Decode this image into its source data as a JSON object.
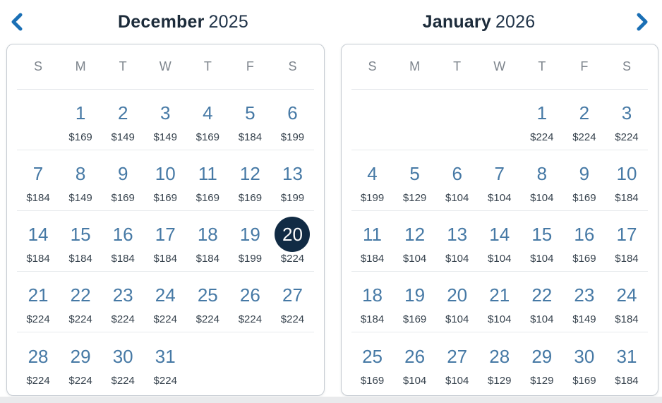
{
  "colors": {
    "chevron_blue": "#1a6fb5",
    "date_blue": "#4679a5",
    "selected_circle_navy": "#112b44",
    "selected_text": "#ffffff",
    "title_navy": "#1c2b3a",
    "price_text": "#36424d",
    "day_header_gray": "#7d848c",
    "panel_border": "#c6ccd2",
    "separator": "#e7eaed",
    "bottom_strip": "#e9eaec"
  },
  "nav": {
    "prev_icon": "chevron-left",
    "next_icon": "chevron-right"
  },
  "selected_date": {
    "month": "December",
    "year": "2025",
    "day": "20",
    "price": "$224"
  },
  "calendars": [
    {
      "month": "December",
      "year": "2025",
      "day_headers": [
        "S",
        "M",
        "T",
        "W",
        "T",
        "F",
        "S"
      ],
      "weeks": [
        [
          {
            "day": "",
            "price": ""
          },
          {
            "day": "1",
            "price": "$169"
          },
          {
            "day": "2",
            "price": "$149"
          },
          {
            "day": "3",
            "price": "$149"
          },
          {
            "day": "4",
            "price": "$169"
          },
          {
            "day": "5",
            "price": "$184"
          },
          {
            "day": "6",
            "price": "$199"
          }
        ],
        [
          {
            "day": "7",
            "price": "$184"
          },
          {
            "day": "8",
            "price": "$149"
          },
          {
            "day": "9",
            "price": "$169"
          },
          {
            "day": "10",
            "price": "$169"
          },
          {
            "day": "11",
            "price": "$169"
          },
          {
            "day": "12",
            "price": "$169"
          },
          {
            "day": "13",
            "price": "$199"
          }
        ],
        [
          {
            "day": "14",
            "price": "$184"
          },
          {
            "day": "15",
            "price": "$184"
          },
          {
            "day": "16",
            "price": "$184"
          },
          {
            "day": "17",
            "price": "$184"
          },
          {
            "day": "18",
            "price": "$184"
          },
          {
            "day": "19",
            "price": "$199"
          },
          {
            "day": "20",
            "price": "$224",
            "selected": true
          }
        ],
        [
          {
            "day": "21",
            "price": "$224"
          },
          {
            "day": "22",
            "price": "$224"
          },
          {
            "day": "23",
            "price": "$224"
          },
          {
            "day": "24",
            "price": "$224"
          },
          {
            "day": "25",
            "price": "$224"
          },
          {
            "day": "26",
            "price": "$224"
          },
          {
            "day": "27",
            "price": "$224"
          }
        ],
        [
          {
            "day": "28",
            "price": "$224"
          },
          {
            "day": "29",
            "price": "$224"
          },
          {
            "day": "30",
            "price": "$224"
          },
          {
            "day": "31",
            "price": "$224"
          },
          {
            "day": "",
            "price": ""
          },
          {
            "day": "",
            "price": ""
          },
          {
            "day": "",
            "price": ""
          }
        ]
      ]
    },
    {
      "month": "January",
      "year": "2026",
      "day_headers": [
        "S",
        "M",
        "T",
        "W",
        "T",
        "F",
        "S"
      ],
      "weeks": [
        [
          {
            "day": "",
            "price": ""
          },
          {
            "day": "",
            "price": ""
          },
          {
            "day": "",
            "price": ""
          },
          {
            "day": "",
            "price": ""
          },
          {
            "day": "1",
            "price": "$224"
          },
          {
            "day": "2",
            "price": "$224"
          },
          {
            "day": "3",
            "price": "$224"
          }
        ],
        [
          {
            "day": "4",
            "price": "$199"
          },
          {
            "day": "5",
            "price": "$129"
          },
          {
            "day": "6",
            "price": "$104"
          },
          {
            "day": "7",
            "price": "$104"
          },
          {
            "day": "8",
            "price": "$104"
          },
          {
            "day": "9",
            "price": "$169"
          },
          {
            "day": "10",
            "price": "$184"
          }
        ],
        [
          {
            "day": "11",
            "price": "$184"
          },
          {
            "day": "12",
            "price": "$104"
          },
          {
            "day": "13",
            "price": "$104"
          },
          {
            "day": "14",
            "price": "$104"
          },
          {
            "day": "15",
            "price": "$104"
          },
          {
            "day": "16",
            "price": "$169"
          },
          {
            "day": "17",
            "price": "$184"
          }
        ],
        [
          {
            "day": "18",
            "price": "$184"
          },
          {
            "day": "19",
            "price": "$169"
          },
          {
            "day": "20",
            "price": "$104"
          },
          {
            "day": "21",
            "price": "$104"
          },
          {
            "day": "22",
            "price": "$104"
          },
          {
            "day": "23",
            "price": "$149"
          },
          {
            "day": "24",
            "price": "$184"
          }
        ],
        [
          {
            "day": "25",
            "price": "$169"
          },
          {
            "day": "26",
            "price": "$104"
          },
          {
            "day": "27",
            "price": "$104"
          },
          {
            "day": "28",
            "price": "$129"
          },
          {
            "day": "29",
            "price": "$129"
          },
          {
            "day": "30",
            "price": "$169"
          },
          {
            "day": "31",
            "price": "$184"
          }
        ]
      ]
    }
  ]
}
